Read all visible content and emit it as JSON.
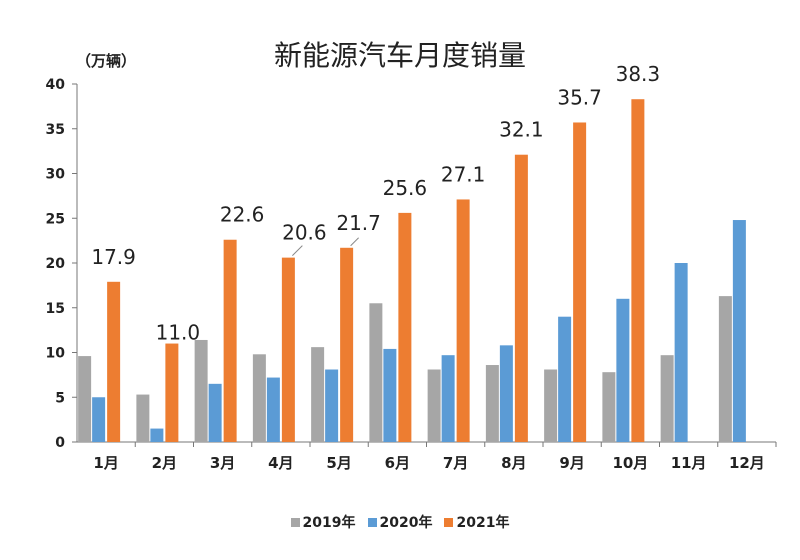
{
  "chart_data": {
    "type": "bar",
    "title": "新能源汽车月度销量",
    "ylabel": "（万辆）",
    "ylim": [
      0,
      40
    ],
    "yticks": [
      0,
      5,
      10,
      15,
      20,
      25,
      30,
      35,
      40
    ],
    "categories": [
      "1月",
      "2月",
      "3月",
      "4月",
      "5月",
      "6月",
      "7月",
      "8月",
      "9月",
      "10月",
      "11月",
      "12月"
    ],
    "series": [
      {
        "name": "2019年",
        "color": "#a6a6a6",
        "values": [
          9.6,
          5.3,
          11.4,
          9.8,
          10.6,
          15.5,
          8.1,
          8.6,
          8.1,
          7.8,
          9.7,
          16.3
        ]
      },
      {
        "name": "2020年",
        "color": "#5b9bd5",
        "values": [
          5.0,
          1.5,
          6.5,
          7.2,
          8.1,
          10.4,
          9.7,
          10.8,
          14.0,
          16.0,
          20.0,
          24.8
        ]
      },
      {
        "name": "2021年",
        "color": "#ed7d31",
        "values": [
          17.9,
          11.0,
          22.6,
          20.6,
          21.7,
          25.6,
          27.1,
          32.1,
          35.7,
          38.3,
          null,
          null
        ]
      }
    ],
    "data_labels": [
      "17.9",
      "11.0",
      "22.6",
      "20.6",
      "21.7",
      "25.6",
      "27.1",
      "32.1",
      "35.7",
      "38.3"
    ],
    "legend_position": "bottom",
    "grid": false
  }
}
